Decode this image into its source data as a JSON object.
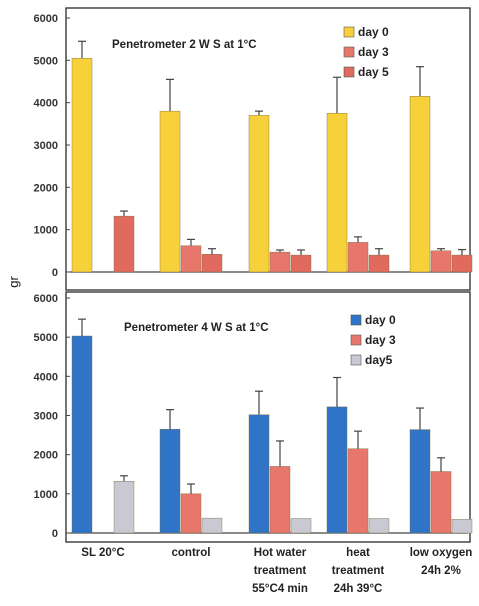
{
  "y_unit_label": "gr",
  "category_labels": [
    [
      "SL 20°C"
    ],
    [
      "control"
    ],
    [
      "Hot water",
      "treatment",
      "55°C4 min"
    ],
    [
      "heat",
      "treatment",
      "24h 39°C"
    ],
    [
      "low oxygen",
      "24h 2%"
    ]
  ],
  "chart_data": [
    {
      "type": "bar",
      "title": "Penetrometer 2 W S at 1°C",
      "categories": [
        "SL 20°C",
        "control",
        "Hot water treatment 55°C4 min",
        "heat treatment 24h 39°C",
        "low oxygen 24h 2%"
      ],
      "ylim": [
        0,
        6000
      ],
      "yticks": [
        0,
        1000,
        2000,
        3000,
        4000,
        5000,
        6000
      ],
      "ylabel": "gr",
      "legend_position": "top-right",
      "series": [
        {
          "name": "day 0",
          "color": "#f7d13a",
          "values": [
            5050,
            3800,
            3700,
            3750,
            4150
          ],
          "errors": [
            400,
            750,
            100,
            850,
            700
          ]
        },
        {
          "name": "day 3",
          "color": "#e8776b",
          "values": [
            null,
            620,
            470,
            700,
            500
          ],
          "errors": [
            null,
            150,
            50,
            130,
            50
          ]
        },
        {
          "name": "day 5",
          "color": "#e06a5e",
          "values": [
            1320,
            420,
            400,
            400,
            400
          ],
          "errors": [
            120,
            130,
            120,
            150,
            130
          ]
        }
      ]
    },
    {
      "type": "bar",
      "title": "Penetrometer 4 W S at 1°C",
      "categories": [
        "SL 20°C",
        "control",
        "Hot water treatment 55°C4 min",
        "heat treatment 24h 39°C",
        "low oxygen 24h 2%"
      ],
      "ylim": [
        0,
        6000
      ],
      "yticks": [
        0,
        1000,
        2000,
        3000,
        4000,
        5000,
        6000
      ],
      "legend_position": "top-right",
      "series": [
        {
          "name": "day 0",
          "color": "#2f74c6",
          "values": [
            5030,
            2650,
            3020,
            3220,
            2640
          ],
          "errors": [
            430,
            500,
            600,
            750,
            550
          ]
        },
        {
          "name": "day 3",
          "color": "#e8776b",
          "values": [
            null,
            1000,
            1700,
            2150,
            1570
          ],
          "errors": [
            null,
            250,
            650,
            450,
            350
          ]
        },
        {
          "name": "day5",
          "color": "#c9c9d4",
          "values": [
            1320,
            380,
            370,
            370,
            350
          ],
          "errors": [
            140,
            null,
            null,
            null,
            null
          ]
        }
      ]
    }
  ]
}
